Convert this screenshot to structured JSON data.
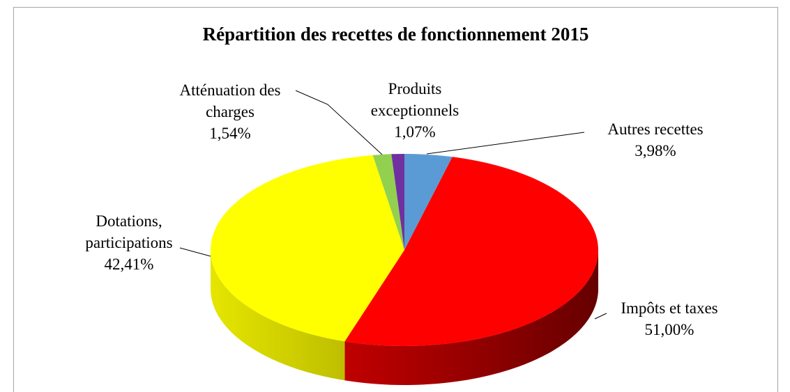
{
  "chart_data": {
    "type": "pie3d",
    "title": "Répartition des recettes de fonctionnement 2015",
    "categories": [
      "Autres recettes",
      "Impôts et taxes",
      "Dotations, participations",
      "Atténuation des charges",
      "Produits exceptionnels"
    ],
    "values": [
      3.98,
      51.0,
      42.41,
      1.54,
      1.07
    ],
    "value_labels": [
      "3,98%",
      "51,00%",
      "42,41%",
      "1,54%",
      "1,07%"
    ],
    "colors": [
      "#5b9bd5",
      "#ff0000",
      "#ffff00",
      "#92d050",
      "#7030a0"
    ]
  }
}
